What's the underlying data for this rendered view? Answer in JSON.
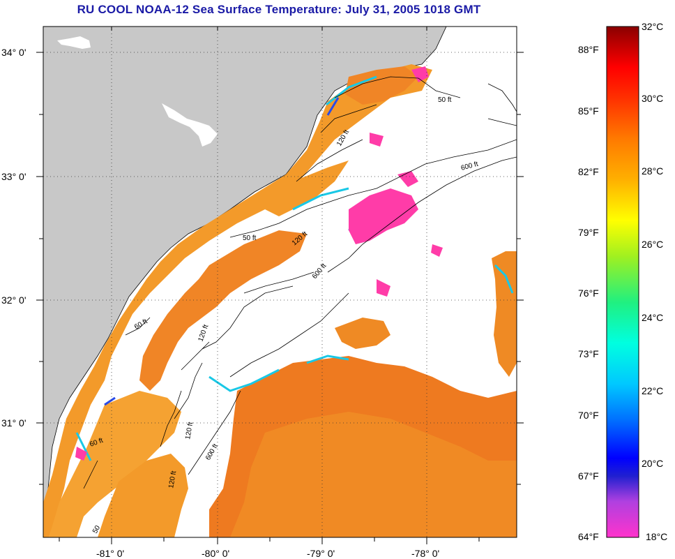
{
  "title": "RU COOL  NOAA-12  Sea Surface Temperature:  July 31, 2005 1018 GMT",
  "map": {
    "lon_ticks": [
      "-81° 0'",
      "-80° 0'",
      "-79° 0'",
      "-78° 0'"
    ],
    "lat_ticks": [
      "34° 0'",
      "33° 0'",
      "32° 0'",
      "31° 0'"
    ],
    "contour_labels": [
      "50 ft",
      "120 ft",
      "600 ft",
      "50 ft",
      "120 ft",
      "600 ft",
      "60 ft",
      "120 ft",
      "60 ft",
      "120 ft",
      "600 ft",
      "120 ft",
      "50"
    ],
    "colors": {
      "land": "#c8c8c8",
      "cloud": "#ffffff",
      "water_warm": "#f07a1e",
      "water_hot": "#ec5a14",
      "cool_cyan": "#19c8e6",
      "cool_blue": "#2a4ce8",
      "pink": "#ff3ca8"
    }
  },
  "colorbar": {
    "celsius_labels": [
      "32°C",
      "30°C",
      "28°C",
      "26°C",
      "24°C",
      "22°C",
      "20°C",
      "18°C"
    ],
    "fahrenheit_labels": [
      "88°F",
      "85°F",
      "82°F",
      "79°F",
      "76°F",
      "73°F",
      "70°F",
      "67°F",
      "64°F"
    ],
    "range_c": [
      18,
      32
    ]
  }
}
